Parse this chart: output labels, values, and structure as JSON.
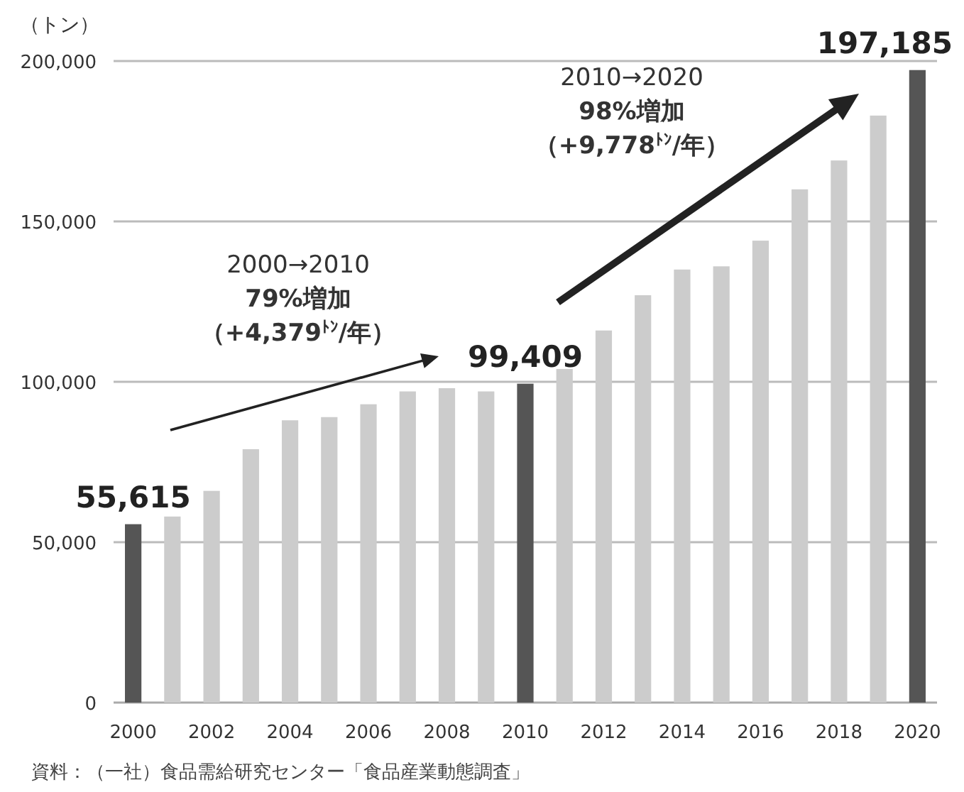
{
  "chart_data": {
    "type": "bar",
    "ylabel": "（トン）",
    "categories": [
      "2000",
      null,
      "2002",
      null,
      "2004",
      null,
      "2006",
      null,
      "2008",
      null,
      "2010",
      null,
      "2012",
      null,
      "2014",
      null,
      "2016",
      null,
      "2018",
      null,
      "2020"
    ],
    "values": [
      55615,
      58000,
      66000,
      79000,
      88000,
      89000,
      93000,
      97000,
      98000,
      97000,
      99409,
      104000,
      116000,
      127000,
      135000,
      136000,
      144000,
      160000,
      169000,
      183000,
      197185
    ],
    "colors": [
      "#555555",
      "#cccccc",
      "#cccccc",
      "#cccccc",
      "#cccccc",
      "#cccccc",
      "#cccccc",
      "#cccccc",
      "#cccccc",
      "#cccccc",
      "#555555",
      "#cccccc",
      "#cccccc",
      "#cccccc",
      "#cccccc",
      "#cccccc",
      "#cccccc",
      "#cccccc",
      "#cccccc",
      "#cccccc",
      "#555555"
    ],
    "value_labels": [
      "55,615",
      null,
      null,
      null,
      null,
      null,
      null,
      null,
      null,
      null,
      "99,409",
      null,
      null,
      null,
      null,
      null,
      null,
      null,
      null,
      null,
      "197,185"
    ],
    "ylim": [
      0,
      200000
    ],
    "yticks": [
      {
        "value": 0,
        "label": "0"
      },
      {
        "value": 50000,
        "label": "50,000"
      },
      {
        "value": 100000,
        "label": "100,000"
      },
      {
        "value": 150000,
        "label": "150,000"
      },
      {
        "value": 200000,
        "label": "200,000"
      }
    ],
    "grid": "y",
    "annotations": [
      "2000→2010",
      "79%増加",
      "（+4,379$^{ﾄﾝ}$/年）",
      "2010→2020",
      "98%増加",
      "（+9,778$^{ﾄﾝ}$/年）",
      "資料：（一社）食品需給研究センター「食品産業動態調査」"
    ]
  }
}
